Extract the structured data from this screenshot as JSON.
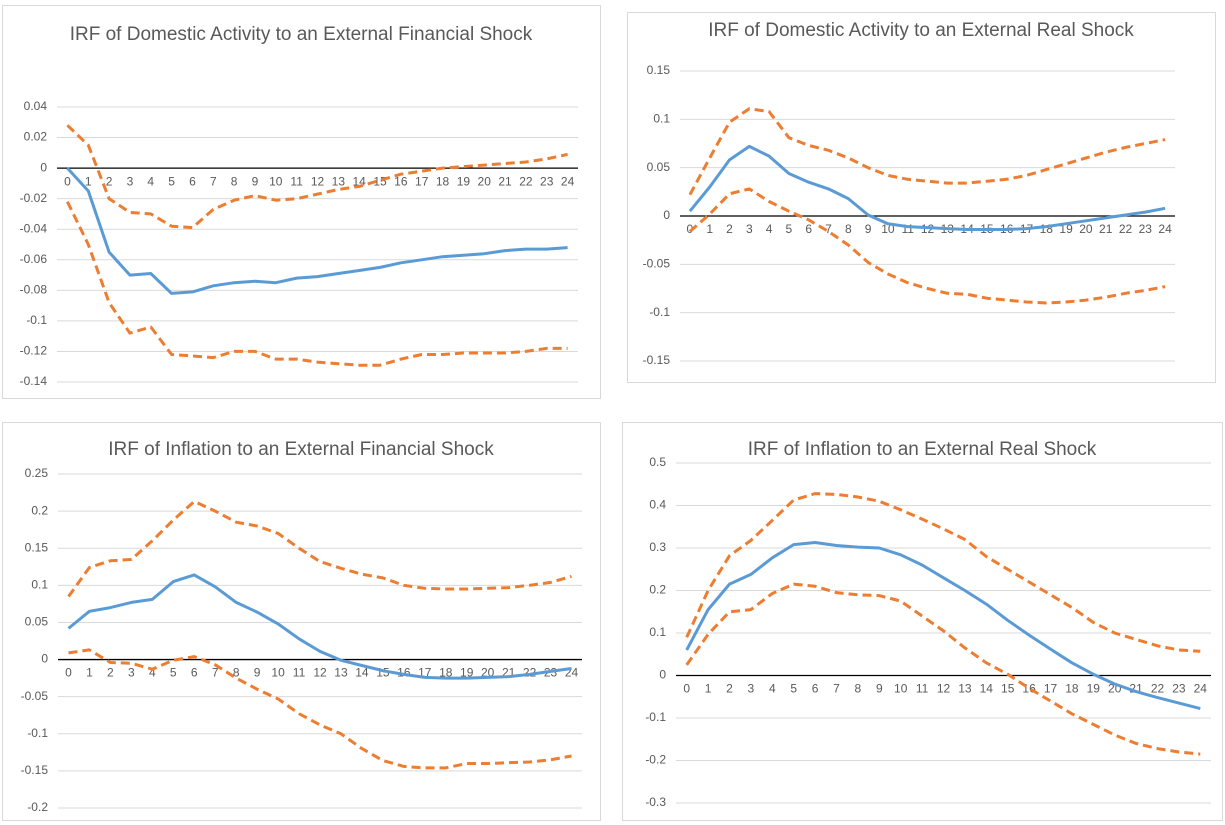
{
  "chart_data": [
    {
      "type": "line",
      "title": "IRF of Domestic Activity to an External Financial Shock",
      "categories": [
        "0",
        "1",
        "2",
        "3",
        "4",
        "5",
        "6",
        "7",
        "8",
        "9",
        "10",
        "11",
        "12",
        "13",
        "14",
        "15",
        "16",
        "17",
        "18",
        "19",
        "20",
        "21",
        "22",
        "23",
        "24"
      ],
      "ylim": [
        -0.14,
        0.04
      ],
      "yticks": [
        0.04,
        0.02,
        0,
        -0.02,
        -0.04,
        -0.06,
        -0.08,
        -0.1,
        -0.12,
        -0.14
      ],
      "grid": true,
      "series": [
        {
          "color": "#5b9bd5",
          "dashed": false,
          "values": [
            0,
            -0.015,
            -0.055,
            -0.07,
            -0.069,
            -0.082,
            -0.081,
            -0.077,
            -0.075,
            -0.074,
            -0.075,
            -0.072,
            -0.071,
            -0.069,
            -0.067,
            -0.065,
            -0.062,
            -0.06,
            -0.058,
            -0.057,
            -0.056,
            -0.054,
            -0.053,
            -0.053,
            -0.052
          ]
        },
        {
          "color": "#ed7d31",
          "dashed": true,
          "values": [
            0.028,
            0.015,
            -0.02,
            -0.029,
            -0.03,
            -0.038,
            -0.039,
            -0.027,
            -0.021,
            -0.018,
            -0.021,
            -0.02,
            -0.017,
            -0.014,
            -0.012,
            -0.008,
            -0.004,
            -0.002,
            0,
            0.001,
            0.002,
            0.003,
            0.004,
            0.006,
            0.009
          ]
        },
        {
          "color": "#ed7d31",
          "dashed": true,
          "values": [
            -0.022,
            -0.05,
            -0.088,
            -0.108,
            -0.104,
            -0.122,
            -0.123,
            -0.124,
            -0.12,
            -0.12,
            -0.125,
            -0.125,
            -0.127,
            -0.128,
            -0.129,
            -0.129,
            -0.125,
            -0.122,
            -0.122,
            -0.121,
            -0.121,
            -0.121,
            -0.12,
            -0.118,
            -0.118
          ]
        }
      ]
    },
    {
      "type": "line",
      "title": "IRF of Domestic Activity to an External Real Shock",
      "categories": [
        "0",
        "1",
        "2",
        "3",
        "4",
        "5",
        "6",
        "7",
        "8",
        "9",
        "10",
        "11",
        "12",
        "13",
        "14",
        "15",
        "16",
        "17",
        "18",
        "19",
        "20",
        "21",
        "22",
        "23",
        "24"
      ],
      "ylim": [
        -0.15,
        0.15
      ],
      "yticks": [
        0.15,
        0.1,
        0.05,
        0,
        -0.05,
        -0.1,
        -0.15
      ],
      "grid": true,
      "series": [
        {
          "color": "#5b9bd5",
          "dashed": false,
          "values": [
            0.005,
            0.03,
            0.058,
            0.072,
            0.062,
            0.044,
            0.035,
            0.028,
            0.018,
            0.001,
            -0.008,
            -0.011,
            -0.012,
            -0.013,
            -0.014,
            -0.014,
            -0.014,
            -0.013,
            -0.011,
            -0.008,
            -0.005,
            -0.002,
            0.001,
            0.004,
            0.008
          ]
        },
        {
          "color": "#ed7d31",
          "dashed": true,
          "values": [
            0.022,
            0.06,
            0.097,
            0.111,
            0.108,
            0.081,
            0.073,
            0.068,
            0.06,
            0.05,
            0.042,
            0.038,
            0.036,
            0.034,
            0.034,
            0.036,
            0.038,
            0.042,
            0.048,
            0.054,
            0.06,
            0.066,
            0.071,
            0.075,
            0.079
          ]
        },
        {
          "color": "#ed7d31",
          "dashed": true,
          "values": [
            -0.016,
            0.002,
            0.023,
            0.028,
            0.015,
            0.005,
            -0.004,
            -0.016,
            -0.03,
            -0.048,
            -0.06,
            -0.069,
            -0.075,
            -0.08,
            -0.081,
            -0.085,
            -0.087,
            -0.089,
            -0.09,
            -0.089,
            -0.087,
            -0.084,
            -0.08,
            -0.077,
            -0.073
          ]
        }
      ]
    },
    {
      "type": "line",
      "title": "IRF of Inflation to an External Financial Shock",
      "categories": [
        "0",
        "1",
        "2",
        "3",
        "4",
        "5",
        "6",
        "7",
        "8",
        "9",
        "10",
        "11",
        "12",
        "13",
        "14",
        "15",
        "16",
        "17",
        "18",
        "19",
        "20",
        "21",
        "22",
        "23",
        "24"
      ],
      "ylim": [
        -0.2,
        0.25
      ],
      "yticks": [
        0.25,
        0.2,
        0.15,
        0.1,
        0.05,
        0,
        -0.05,
        -0.1,
        -0.15,
        -0.2
      ],
      "grid": true,
      "series": [
        {
          "color": "#5b9bd5",
          "dashed": false,
          "values": [
            0.042,
            0.065,
            0.07,
            0.077,
            0.081,
            0.105,
            0.114,
            0.098,
            0.077,
            0.064,
            0.048,
            0.028,
            0.011,
            -0.001,
            -0.008,
            -0.015,
            -0.02,
            -0.024,
            -0.025,
            -0.025,
            -0.024,
            -0.023,
            -0.02,
            -0.016,
            -0.012
          ]
        },
        {
          "color": "#ed7d31",
          "dashed": true,
          "values": [
            0.085,
            0.124,
            0.133,
            0.135,
            0.16,
            0.188,
            0.213,
            0.2,
            0.185,
            0.18,
            0.17,
            0.15,
            0.132,
            0.123,
            0.115,
            0.11,
            0.1,
            0.096,
            0.095,
            0.095,
            0.096,
            0.097,
            0.1,
            0.104,
            0.112
          ]
        },
        {
          "color": "#ed7d31",
          "dashed": true,
          "values": [
            0.009,
            0.013,
            -0.004,
            -0.005,
            -0.013,
            -0.001,
            0.004,
            -0.007,
            -0.025,
            -0.04,
            -0.053,
            -0.073,
            -0.088,
            -0.1,
            -0.12,
            -0.136,
            -0.144,
            -0.146,
            -0.146,
            -0.14,
            -0.14,
            -0.139,
            -0.138,
            -0.135,
            -0.13
          ]
        }
      ]
    },
    {
      "type": "line",
      "title": "IRF of Inflation to an External Real Shock",
      "categories": [
        "0",
        "1",
        "2",
        "3",
        "4",
        "5",
        "6",
        "7",
        "8",
        "9",
        "10",
        "11",
        "12",
        "13",
        "14",
        "15",
        "16",
        "17",
        "18",
        "19",
        "20",
        "21",
        "22",
        "23",
        "24"
      ],
      "ylim": [
        -0.3,
        0.5
      ],
      "yticks": [
        0.5,
        0.4,
        0.3,
        0.2,
        0.1,
        0,
        -0.1,
        -0.2,
        -0.3
      ],
      "grid": true,
      "series": [
        {
          "color": "#5b9bd5",
          "dashed": false,
          "values": [
            0.06,
            0.155,
            0.215,
            0.238,
            0.277,
            0.308,
            0.313,
            0.306,
            0.302,
            0.3,
            0.284,
            0.26,
            0.23,
            0.2,
            0.168,
            0.13,
            0.095,
            0.062,
            0.03,
            0.003,
            -0.02,
            -0.038,
            -0.052,
            -0.065,
            -0.078
          ]
        },
        {
          "color": "#ed7d31",
          "dashed": true,
          "values": [
            0.09,
            0.2,
            0.282,
            0.318,
            0.365,
            0.413,
            0.428,
            0.426,
            0.42,
            0.41,
            0.39,
            0.368,
            0.345,
            0.32,
            0.28,
            0.25,
            0.22,
            0.19,
            0.16,
            0.125,
            0.1,
            0.085,
            0.07,
            0.06,
            0.057
          ]
        },
        {
          "color": "#ed7d31",
          "dashed": true,
          "values": [
            0.025,
            0.097,
            0.15,
            0.155,
            0.193,
            0.215,
            0.21,
            0.195,
            0.19,
            0.188,
            0.175,
            0.14,
            0.105,
            0.065,
            0.03,
            0.003,
            -0.03,
            -0.06,
            -0.09,
            -0.115,
            -0.14,
            -0.16,
            -0.172,
            -0.18,
            -0.185
          ]
        }
      ]
    }
  ]
}
